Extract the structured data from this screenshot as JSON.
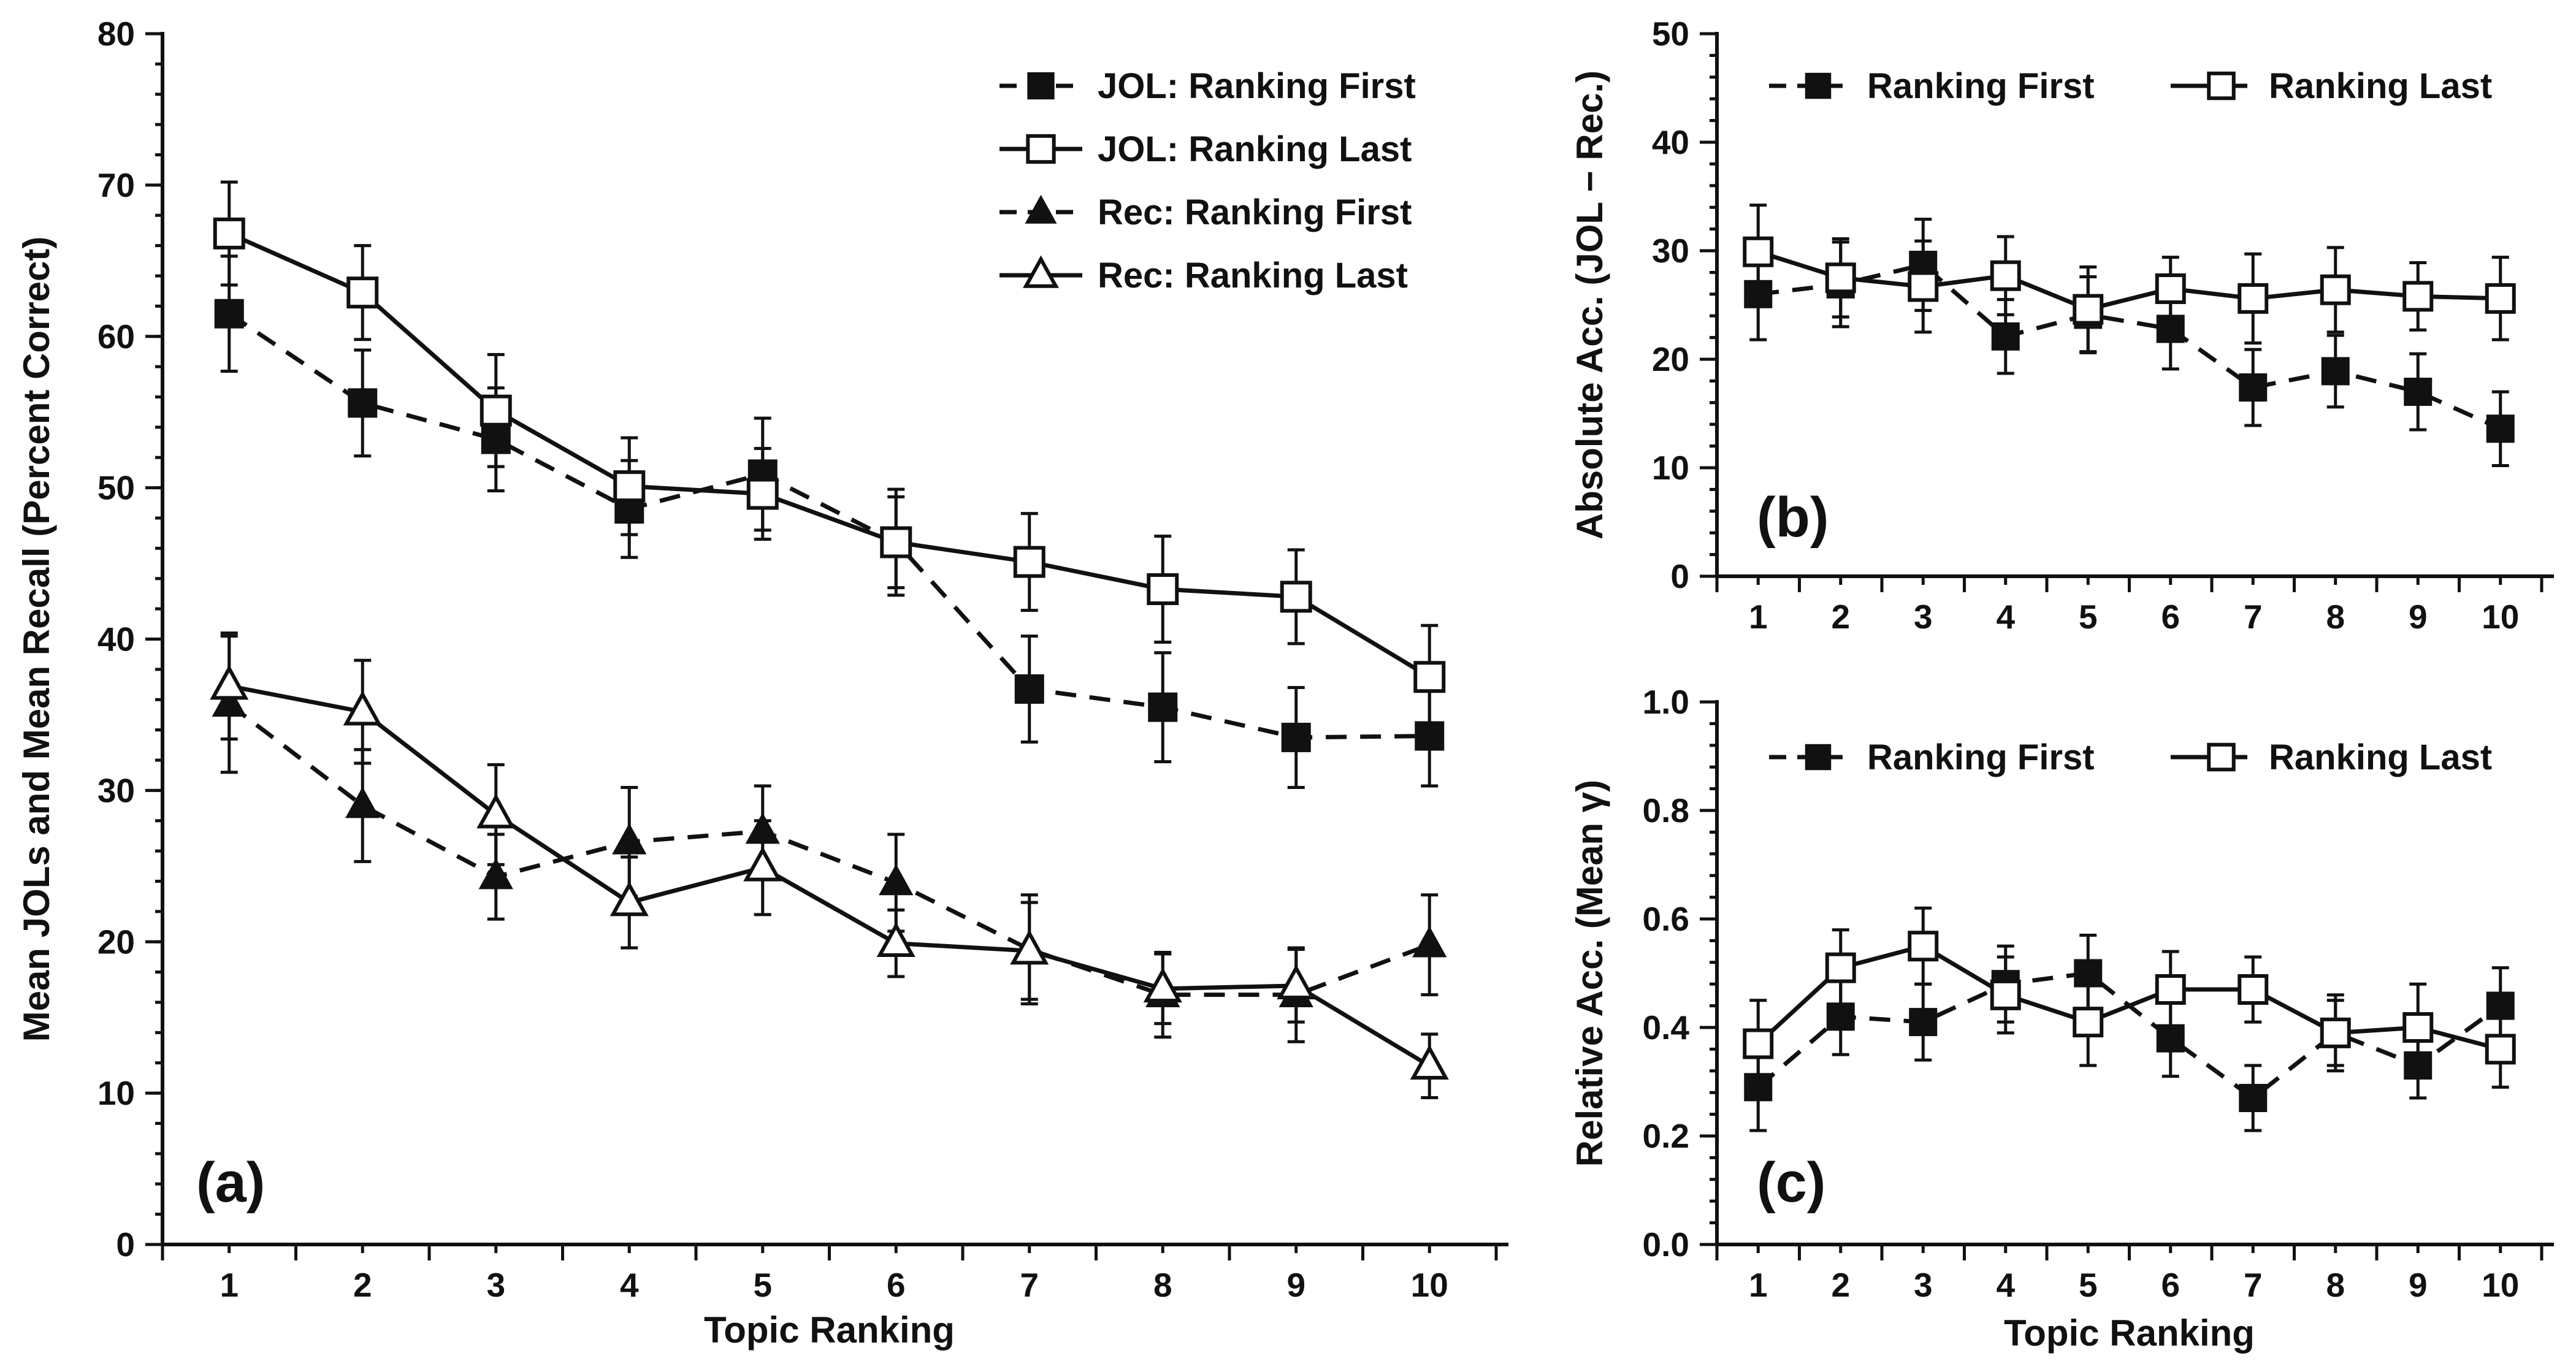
{
  "chart_data": [
    {
      "type": "line",
      "panel_label": "(a)",
      "xlabel": "Topic Ranking",
      "ylabel": "Mean JOLs and Mean Recall (Percent Correct)",
      "x": [
        1,
        2,
        3,
        4,
        5,
        6,
        7,
        8,
        9,
        10
      ],
      "xlim": [
        0.5,
        10.5
      ],
      "ylim": [
        0,
        80
      ],
      "yticks": [
        0,
        10,
        20,
        30,
        40,
        50,
        60,
        70,
        80
      ],
      "yminor_step": 2,
      "legend_position": "top-right",
      "series": [
        {
          "name": "JOL: Ranking First",
          "dash": "dashed",
          "marker": "square-filled",
          "values": [
            61.5,
            55.6,
            53.2,
            48.6,
            50.9,
            46.4,
            36.7,
            35.5,
            33.5,
            33.6
          ],
          "errors": [
            3.8,
            3.5,
            3.4,
            3.2,
            3.7,
            3.5,
            3.5,
            3.6,
            3.3,
            3.3
          ]
        },
        {
          "name": "JOL: Ranking Last",
          "dash": "solid",
          "marker": "square-open",
          "values": [
            66.8,
            62.9,
            55.1,
            50.1,
            49.6,
            46.4,
            45.1,
            43.3,
            42.8,
            37.5
          ],
          "errors": [
            3.4,
            3.1,
            3.7,
            3.2,
            3.0,
            3.0,
            3.2,
            3.5,
            3.1,
            3.4
          ]
        },
        {
          "name": "Rec: Ranking First",
          "dash": "dashed",
          "marker": "triangle-filled",
          "values": [
            35.7,
            29.0,
            24.3,
            26.6,
            27.3,
            23.9,
            19.5,
            16.5,
            16.5,
            19.8
          ],
          "errors": [
            4.5,
            3.7,
            2.8,
            3.6,
            3.0,
            3.2,
            3.6,
            2.8,
            3.1,
            3.3
          ]
        },
        {
          "name": "Rec: Ranking Last",
          "dash": "solid",
          "marker": "triangle-open",
          "values": [
            36.9,
            35.2,
            28.4,
            22.6,
            24.9,
            19.9,
            19.4,
            16.9,
            17.1,
            11.8
          ],
          "errors": [
            3.5,
            3.4,
            3.3,
            3.0,
            3.1,
            2.2,
            3.2,
            2.3,
            2.4,
            2.1
          ]
        }
      ]
    },
    {
      "type": "line",
      "panel_label": "(b)",
      "xlabel": "",
      "ylabel": "Absolute Acc. (JOL − Rec.)",
      "x": [
        1,
        2,
        3,
        4,
        5,
        6,
        7,
        8,
        9,
        10
      ],
      "xlim": [
        0.5,
        10.5
      ],
      "ylim": [
        0,
        50
      ],
      "yticks": [
        0,
        10,
        20,
        30,
        40,
        50
      ],
      "yminor_step": 2,
      "legend_position": "top",
      "series": [
        {
          "name": "Ranking First",
          "dash": "dashed",
          "marker": "square-filled",
          "values": [
            26.0,
            26.9,
            28.7,
            22.1,
            24.1,
            22.8,
            17.4,
            18.9,
            17.0,
            13.6
          ],
          "errors": [
            4.2,
            3.9,
            4.2,
            3.4,
            3.5,
            3.7,
            3.5,
            3.3,
            3.5,
            3.4
          ]
        },
        {
          "name": "Ranking Last",
          "dash": "solid",
          "marker": "square-open",
          "values": [
            29.9,
            27.5,
            26.7,
            27.7,
            24.6,
            26.5,
            25.6,
            26.4,
            25.8,
            25.6
          ],
          "errors": [
            4.3,
            3.6,
            4.2,
            3.6,
            3.9,
            2.9,
            4.1,
            3.9,
            3.1,
            3.8
          ]
        }
      ]
    },
    {
      "type": "line",
      "panel_label": "(c)",
      "xlabel": "Topic Ranking",
      "ylabel": "Relative Acc. (Mean γ)",
      "x": [
        1,
        2,
        3,
        4,
        5,
        6,
        7,
        8,
        9,
        10
      ],
      "xlim": [
        0.5,
        10.5
      ],
      "ylim": [
        0,
        1
      ],
      "yticks": [
        "0.0",
        "0.2",
        "0.4",
        "0.6",
        "0.8",
        "1.0"
      ],
      "yminor_step": 0.04,
      "legend_position": "top",
      "series": [
        {
          "name": "Ranking First",
          "dash": "dashed",
          "marker": "square-filled",
          "values": [
            0.29,
            0.42,
            0.41,
            0.48,
            0.5,
            0.38,
            0.27,
            0.39,
            0.33,
            0.44
          ],
          "errors": [
            0.08,
            0.07,
            0.07,
            0.07,
            0.07,
            0.07,
            0.06,
            0.07,
            0.06,
            0.07
          ]
        },
        {
          "name": "Ranking Last",
          "dash": "solid",
          "marker": "square-open",
          "values": [
            0.37,
            0.51,
            0.55,
            0.46,
            0.41,
            0.47,
            0.47,
            0.39,
            0.4,
            0.36
          ],
          "errors": [
            0.08,
            0.07,
            0.07,
            0.07,
            0.08,
            0.07,
            0.06,
            0.06,
            0.08,
            0.07
          ]
        }
      ]
    }
  ]
}
